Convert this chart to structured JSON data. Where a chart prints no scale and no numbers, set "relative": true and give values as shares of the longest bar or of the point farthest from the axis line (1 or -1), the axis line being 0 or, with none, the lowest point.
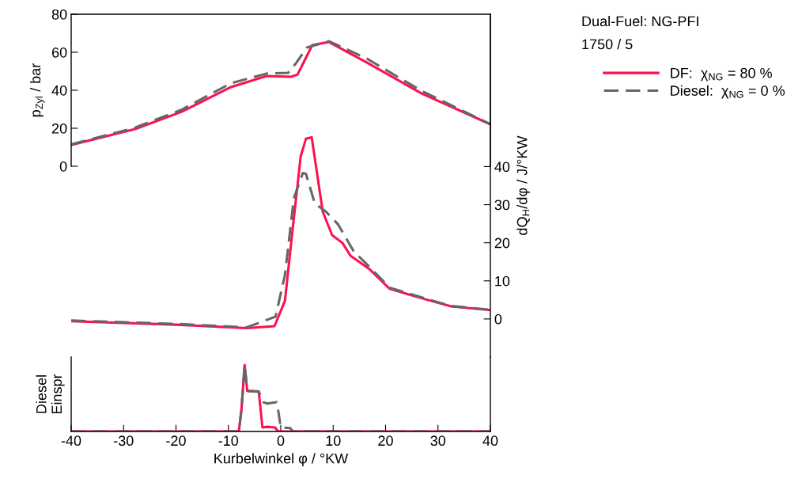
{
  "chart_data": [
    {
      "type": "line",
      "xlim": [
        -40,
        40
      ],
      "ylim": [
        0,
        80
      ],
      "yticks": [
        0,
        20,
        40,
        60,
        80
      ],
      "ylabel": "p$_{Zyl}$ / bar",
      "tick_labels": "y",
      "legend": "right",
      "annotations": [
        "Dual-Fuel: NG-PFI",
        "1750 / 5"
      ],
      "series": [
        {
          "name": "DF:  χ$_{NG}$ = 80 %",
          "color": "#ff1050",
          "line_style": "solid",
          "x": [
            -40,
            -27.8,
            -18.9,
            -9.5,
            -2.7,
            2,
            3.2,
            4.5,
            6,
            9.2,
            16.4,
            26.9,
            40
          ],
          "values": [
            11.2,
            19.6,
            28.7,
            41.7,
            47.5,
            47.1,
            48.3,
            55.4,
            63.7,
            65.4,
            54.6,
            38.3,
            22.1
          ]
        },
        {
          "name": "Diesel:  χ$_{NG}$ = 0 %",
          "color": "#666666",
          "line_style": "dashed",
          "x": [
            -40,
            -27.8,
            -18.9,
            -9.5,
            -2.7,
            1.4,
            3,
            5,
            9.2,
            16.4,
            26.9,
            40
          ],
          "values": [
            11.5,
            20.3,
            29.8,
            43.7,
            48.8,
            49.2,
            54.6,
            62.5,
            65.8,
            56.7,
            39.6,
            22.1
          ]
        }
      ]
    },
    {
      "type": "line",
      "xlim": [
        -40,
        40
      ],
      "y2lim": [
        -10,
        80
      ],
      "y2ticks": [
        0,
        10,
        20,
        30,
        40
      ],
      "y2label": "dQ$_{H}$/dφ / J/°KW",
      "tick_labels": "y",
      "series": [
        {
          "axis": "y2",
          "color": "#ff1050",
          "line_style": "solid",
          "x": [
            -40,
            -20,
            -6.5,
            -1.2,
            0.8,
            2.3,
            3.8,
            4.8,
            5.9,
            6.8,
            8,
            9.8,
            11.8,
            13.3,
            16.9,
            20.8,
            27.5,
            32.5,
            40
          ],
          "values": [
            -0.6,
            -1.5,
            -2.4,
            -1.9,
            4.8,
            24,
            42.7,
            47.3,
            47.7,
            39.4,
            28.2,
            22,
            19.9,
            16.6,
            13.1,
            7.9,
            5.2,
            3.3,
            2.3
          ]
        },
        {
          "axis": "y2",
          "color": "#666666",
          "line_style": "dashed",
          "x": [
            -40,
            -20,
            -6.5,
            -1,
            0.8,
            2.5,
            4.2,
            4.8,
            6.5,
            8.6,
            10.9,
            13.9,
            16.9,
            20.8,
            27.5,
            32.5,
            40
          ],
          "values": [
            -0.4,
            -1.3,
            -2.2,
            0.6,
            11.6,
            31.7,
            38.3,
            38.1,
            30.3,
            28.2,
            24.9,
            17.8,
            13.7,
            8.2,
            5.4,
            3.4,
            2.4
          ]
        }
      ]
    },
    {
      "type": "line",
      "relative": true,
      "xlim": [
        -40,
        40
      ],
      "xticks": [
        -40,
        -30,
        -20,
        -10,
        0,
        10,
        20,
        30,
        40
      ],
      "xlabel": "Kurbelwinkel φ / °KW",
      "ylabel": "Diesel\nEinspr",
      "tick_labels": "x",
      "series": [
        {
          "color": "#ff1050",
          "line_style": "solid",
          "x": [
            -40,
            -8,
            -7.5,
            -6.9,
            -6.4,
            -4.2,
            -3.5,
            -2.6,
            -1.1,
            -0.5,
            40
          ],
          "values": [
            0,
            0,
            0.33,
            1,
            0.61,
            0.6,
            0.06,
            0.07,
            0.06,
            0,
            0
          ]
        },
        {
          "color": "#666666",
          "line_style": "dashed",
          "x": [
            -40,
            -8,
            -7.5,
            -6.9,
            -6.4,
            -4.2,
            -3.3,
            -2.6,
            -0.8,
            -0.5,
            0,
            1.8,
            2.3,
            40
          ],
          "values": [
            0,
            0,
            0.33,
            1,
            0.61,
            0.6,
            0.44,
            0.42,
            0.44,
            0.32,
            0.06,
            0.05,
            0,
            0
          ]
        }
      ]
    }
  ]
}
